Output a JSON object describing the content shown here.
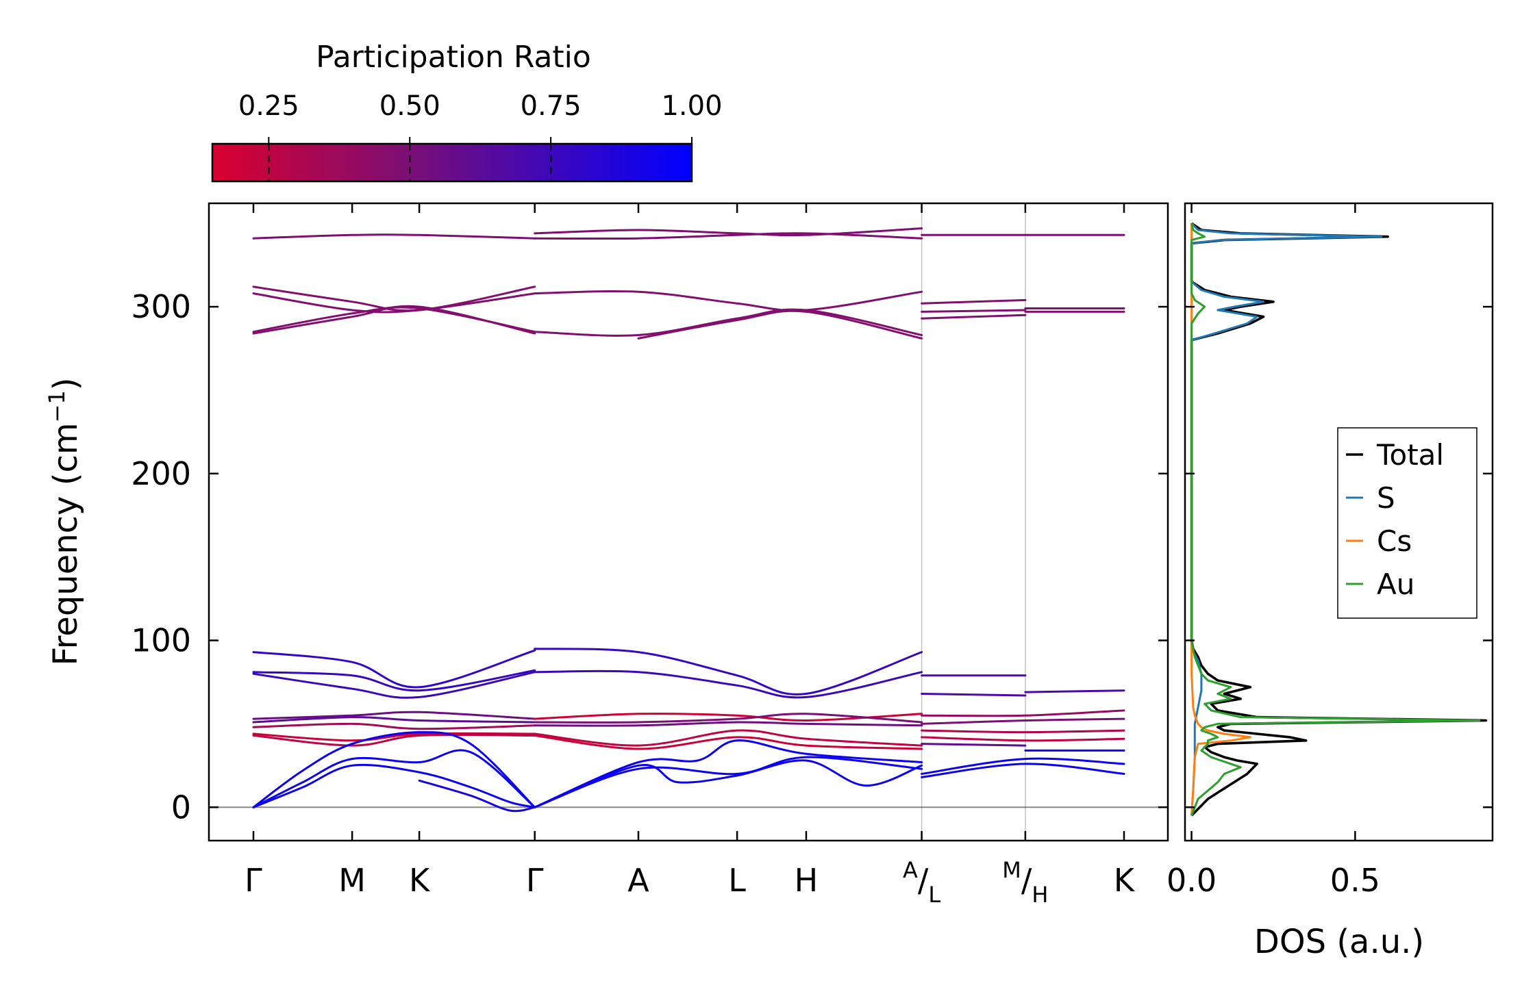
{
  "colorbar": {
    "title": "Participation Ratio",
    "range": [
      0.15,
      1.0
    ],
    "ticks": [
      0.25,
      0.5,
      0.75,
      1.0
    ],
    "tick_labels": [
      "0.25",
      "0.50",
      "0.75",
      "1.00"
    ],
    "color_low": "#d9002e",
    "color_mid": "#7a0f74",
    "color_high": "#0000ff"
  },
  "chart_data": [
    {
      "type": "line",
      "title": "",
      "xlabel": "",
      "ylabel": "Frequency (cm⁻¹)",
      "ylabel_text": "Frequency (cm",
      "ylabel_sup": "−1",
      "ylabel_close": ")",
      "ylim": [
        -20,
        362
      ],
      "yticks": [
        0,
        100,
        200,
        300
      ],
      "ytick_labels": [
        "0",
        "100",
        "200",
        "300"
      ],
      "kpath_labels": [
        "Γ",
        "M",
        "K",
        "Γ",
        "A",
        "L",
        "H",
        "A|L",
        "M|H",
        "K"
      ],
      "kpath_positions": [
        0,
        1.0,
        1.68,
        2.85,
        3.9,
        4.9,
        5.6,
        6.77,
        7.82,
        8.82
      ],
      "kpath_display": [
        {
          "main": "Γ"
        },
        {
          "main": "M"
        },
        {
          "main": "K"
        },
        {
          "main": "Γ"
        },
        {
          "main": "A"
        },
        {
          "main": "L"
        },
        {
          "main": "H"
        },
        {
          "sup": "A",
          "main": "/",
          "sub": "L"
        },
        {
          "sup": "M",
          "main": "/",
          "sub": "H"
        },
        {
          "main": "K"
        }
      ],
      "zero_line_color": "#888888",
      "series": [
        {
          "name": "Sh1",
          "pr": 0.48,
          "x": [
            0,
            1.0,
            1.68,
            2.85
          ],
          "y": [
            341,
            343,
            343,
            341
          ]
        },
        {
          "name": "Sh2",
          "pr": 0.48,
          "x": [
            2.85,
            3.9,
            4.9,
            5.6,
            6.77
          ],
          "y": [
            344,
            346,
            344,
            343,
            347
          ]
        },
        {
          "name": "Sh3",
          "pr": 0.48,
          "x": [
            2.85,
            3.9,
            4.9,
            5.6,
            6.77
          ],
          "y": [
            341,
            341,
            343,
            344,
            341
          ]
        },
        {
          "name": "Sh4",
          "pr": 0.48,
          "x": [
            6.77,
            7.82,
            8.82
          ],
          "y": [
            343,
            343,
            343
          ]
        },
        {
          "name": "Sm1",
          "pr": 0.47,
          "x": [
            0,
            1.0,
            1.68,
            2.85
          ],
          "y": [
            312,
            303,
            298,
            312
          ]
        },
        {
          "name": "Sm2",
          "pr": 0.47,
          "x": [
            0,
            1.0,
            1.68,
            2.85
          ],
          "y": [
            308,
            298,
            298,
            308
          ]
        },
        {
          "name": "Sm3",
          "pr": 0.47,
          "x": [
            0,
            1.0,
            1.68,
            2.85
          ],
          "y": [
            285,
            296,
            299,
            285
          ]
        },
        {
          "name": "Sm4",
          "pr": 0.47,
          "x": [
            0,
            1.0,
            1.68,
            2.85
          ],
          "y": [
            284,
            294,
            300,
            284
          ]
        },
        {
          "name": "Sm5",
          "pr": 0.47,
          "x": [
            2.85,
            3.9,
            4.9,
            5.6,
            6.77
          ],
          "y": [
            308,
            309,
            302,
            298,
            309
          ]
        },
        {
          "name": "Sm6",
          "pr": 0.47,
          "x": [
            2.85,
            3.9,
            4.9,
            5.6,
            6.77
          ],
          "y": [
            285,
            283,
            293,
            298,
            283
          ]
        },
        {
          "name": "Sm7",
          "pr": 0.47,
          "x": [
            3.9,
            4.9,
            5.6,
            6.77
          ],
          "y": [
            281,
            292,
            297,
            281
          ]
        },
        {
          "name": "Sm8",
          "pr": 0.47,
          "x": [
            6.77,
            7.82
          ],
          "y": [
            302,
            304
          ]
        },
        {
          "name": "Sm9",
          "pr": 0.47,
          "x": [
            6.77,
            7.82
          ],
          "y": [
            297,
            298
          ]
        },
        {
          "name": "Sm10",
          "pr": 0.47,
          "x": [
            6.77,
            7.82
          ],
          "y": [
            293,
            295
          ]
        },
        {
          "name": "Sm11",
          "pr": 0.47,
          "x": [
            7.82,
            8.82
          ],
          "y": [
            299,
            299
          ]
        },
        {
          "name": "Sm12",
          "pr": 0.47,
          "x": [
            7.82,
            8.82
          ],
          "y": [
            297,
            297
          ]
        },
        {
          "name": "O1",
          "pr": 0.8,
          "x": [
            0,
            1.0,
            1.68,
            2.85
          ],
          "y": [
            93,
            87,
            72,
            94
          ]
        },
        {
          "name": "O2",
          "pr": 0.78,
          "x": [
            0,
            1.0,
            1.68,
            2.85
          ],
          "y": [
            81,
            79,
            70,
            82
          ]
        },
        {
          "name": "O3",
          "pr": 0.76,
          "x": [
            0,
            1.0,
            1.68,
            2.85
          ],
          "y": [
            80,
            71,
            66,
            81
          ]
        },
        {
          "name": "O4",
          "pr": 0.78,
          "x": [
            2.85,
            3.9,
            4.9,
            5.6,
            6.77
          ],
          "y": [
            95,
            93,
            79,
            68,
            93
          ]
        },
        {
          "name": "O5",
          "pr": 0.76,
          "x": [
            2.85,
            3.9,
            4.9,
            5.6,
            6.77
          ],
          "y": [
            81,
            81,
            73,
            66,
            81
          ]
        },
        {
          "name": "O6",
          "pr": 0.7,
          "x": [
            6.77,
            7.82
          ],
          "y": [
            79,
            79
          ]
        },
        {
          "name": "O7",
          "pr": 0.7,
          "x": [
            6.77,
            7.82
          ],
          "y": [
            68,
            67
          ]
        },
        {
          "name": "O8",
          "pr": 0.7,
          "x": [
            7.82,
            8.82
          ],
          "y": [
            69,
            70
          ]
        },
        {
          "name": "L1",
          "pr": 0.55,
          "x": [
            0,
            1.0,
            1.68,
            2.85
          ],
          "y": [
            53,
            55,
            57,
            53
          ]
        },
        {
          "name": "L2",
          "pr": 0.62,
          "x": [
            0,
            1.0,
            1.68,
            2.85
          ],
          "y": [
            51,
            54,
            52,
            51
          ]
        },
        {
          "name": "L3",
          "pr": 0.35,
          "x": [
            0,
            1.0,
            1.68,
            2.85
          ],
          "y": [
            48,
            50,
            47,
            49
          ]
        },
        {
          "name": "L4",
          "pr": 0.22,
          "x": [
            0,
            1.0,
            1.68,
            2.85
          ],
          "y": [
            44,
            40,
            44,
            44
          ]
        },
        {
          "name": "L5",
          "pr": 0.25,
          "x": [
            0,
            1.0,
            1.68,
            2.85
          ],
          "y": [
            43,
            37,
            43,
            43
          ]
        },
        {
          "name": "L6",
          "pr": 0.2,
          "x": [
            2.85,
            3.9,
            4.9,
            5.6,
            6.77
          ],
          "y": [
            53,
            56,
            55,
            52,
            56
          ]
        },
        {
          "name": "L7",
          "pr": 0.5,
          "x": [
            2.85,
            3.9,
            4.9,
            5.6,
            6.77
          ],
          "y": [
            51,
            51,
            53,
            56,
            51
          ]
        },
        {
          "name": "L8",
          "pr": 0.55,
          "x": [
            2.85,
            3.9,
            4.9,
            5.6,
            6.77
          ],
          "y": [
            49,
            49,
            51,
            50,
            49
          ]
        },
        {
          "name": "L9",
          "pr": 0.25,
          "x": [
            2.85,
            3.9,
            4.9,
            5.6,
            6.77
          ],
          "y": [
            44,
            37,
            46,
            41,
            37
          ]
        },
        {
          "name": "L10",
          "pr": 0.2,
          "x": [
            2.85,
            3.9,
            4.9,
            5.6,
            6.77
          ],
          "y": [
            43,
            35,
            42,
            37,
            35
          ]
        },
        {
          "name": "L11",
          "pr": 0.4,
          "x": [
            6.77,
            7.82,
            8.82
          ],
          "y": [
            55,
            55,
            58
          ]
        },
        {
          "name": "L12",
          "pr": 0.5,
          "x": [
            6.77,
            7.82,
            8.82
          ],
          "y": [
            50,
            52,
            53
          ]
        },
        {
          "name": "L13",
          "pr": 0.3,
          "x": [
            6.77,
            7.82,
            8.82
          ],
          "y": [
            46,
            45,
            46
          ]
        },
        {
          "name": "L14",
          "pr": 0.25,
          "x": [
            6.77,
            7.82,
            8.82
          ],
          "y": [
            42,
            40,
            41
          ]
        },
        {
          "name": "L15",
          "pr": 0.6,
          "x": [
            6.77,
            7.82
          ],
          "y": [
            38,
            37
          ]
        },
        {
          "name": "A1",
          "pr": 0.95,
          "x": [
            0,
            0.5,
            1.0,
            1.68,
            2.2,
            2.85
          ],
          "y": [
            0,
            22,
            38,
            45,
            38,
            0
          ]
        },
        {
          "name": "A2",
          "pr": 0.95,
          "x": [
            0,
            0.5,
            1.0,
            1.68,
            2.2,
            2.85
          ],
          "y": [
            0,
            15,
            29,
            27,
            33,
            0
          ]
        },
        {
          "name": "A3",
          "pr": 0.95,
          "x": [
            0,
            0.5,
            1.0,
            1.68,
            2.2,
            2.6,
            2.85
          ],
          "y": [
            0,
            12,
            25,
            21,
            12,
            3,
            0
          ]
        },
        {
          "name": "A4",
          "pr": 0.9,
          "x": [
            1.68,
            2.2,
            2.6,
            2.85
          ],
          "y": [
            16,
            7,
            -2,
            0
          ]
        },
        {
          "name": "A5",
          "pr": 0.95,
          "x": [
            2.85,
            3.9,
            4.5,
            4.9,
            5.6,
            6.77
          ],
          "y": [
            0,
            27,
            28,
            40,
            32,
            27
          ]
        },
        {
          "name": "A6",
          "pr": 0.95,
          "x": [
            2.85,
            3.9,
            4.3,
            4.9,
            5.6,
            6.2,
            6.77
          ],
          "y": [
            0,
            25,
            15,
            19,
            28,
            13,
            25
          ]
        },
        {
          "name": "A7",
          "pr": 0.95,
          "x": [
            2.85,
            3.9,
            4.9,
            5.6,
            6.77
          ],
          "y": [
            0,
            23,
            20,
            30,
            23
          ]
        },
        {
          "name": "A8",
          "pr": 0.95,
          "x": [
            6.77,
            7.82,
            8.82
          ],
          "y": [
            20,
            29,
            26
          ]
        },
        {
          "name": "A9",
          "pr": 0.95,
          "x": [
            6.77,
            7.82,
            8.82
          ],
          "y": [
            18,
            26,
            20
          ]
        },
        {
          "name": "A10",
          "pr": 0.95,
          "x": [
            7.82,
            8.82
          ],
          "y": [
            34,
            34
          ]
        }
      ]
    },
    {
      "type": "line",
      "title": "",
      "xlabel": "DOS (a.u.)",
      "ylabel": "",
      "xlim": [
        -0.02,
        0.92
      ],
      "ylim": [
        -20,
        362
      ],
      "xticks": [
        0.0,
        0.5
      ],
      "xtick_labels": [
        "0.0",
        "0.5"
      ],
      "legend_position": "center-right",
      "series": [
        {
          "name": "Total",
          "color": "#000000",
          "width": 3.6,
          "y": [
            -5,
            5,
            20,
            24,
            26,
            28,
            30,
            33,
            36,
            38,
            40,
            42,
            44,
            46,
            48,
            50,
            52,
            54,
            58,
            62,
            65,
            68,
            72,
            76,
            80,
            85,
            90,
            95,
            100,
            280,
            284,
            290,
            294,
            298,
            300,
            303,
            306,
            310,
            315,
            338,
            340,
            342,
            344,
            346,
            350
          ],
          "x": [
            0.0,
            0.05,
            0.17,
            0.19,
            0.2,
            0.14,
            0.1,
            0.06,
            0.04,
            0.08,
            0.35,
            0.3,
            0.2,
            0.1,
            0.08,
            0.12,
            0.9,
            0.2,
            0.08,
            0.06,
            0.15,
            0.1,
            0.18,
            0.08,
            0.05,
            0.03,
            0.02,
            0.005,
            0.0,
            0.0,
            0.08,
            0.18,
            0.22,
            0.1,
            0.15,
            0.25,
            0.12,
            0.04,
            0.0,
            0.0,
            0.1,
            0.6,
            0.15,
            0.03,
            0.0
          ]
        },
        {
          "name": "S",
          "color": "#1f77b4",
          "width": 3.0,
          "y": [
            -5,
            10,
            30,
            50,
            60,
            70,
            80,
            88,
            95,
            100,
            280,
            284,
            290,
            294,
            298,
            300,
            303,
            306,
            310,
            315,
            338,
            340,
            342,
            344,
            346,
            350
          ],
          "x": [
            0.0,
            0.005,
            0.01,
            0.01,
            0.02,
            0.03,
            0.03,
            0.02,
            0.0,
            0.0,
            0.0,
            0.07,
            0.17,
            0.2,
            0.08,
            0.13,
            0.22,
            0.1,
            0.03,
            0.0,
            0.0,
            0.09,
            0.58,
            0.12,
            0.02,
            0.0
          ]
        },
        {
          "name": "Cs",
          "color": "#ff7f0e",
          "width": 3.0,
          "y": [
            -5,
            10,
            30,
            38,
            40,
            42,
            44,
            46,
            48,
            50,
            55,
            60,
            80,
            100,
            300,
            345,
            350
          ],
          "x": [
            0.0,
            0.005,
            0.01,
            0.02,
            0.12,
            0.18,
            0.1,
            0.05,
            0.03,
            0.02,
            0.01,
            0.005,
            0.0,
            0.0,
            0.0,
            0.0,
            0.0
          ]
        },
        {
          "name": "Au",
          "color": "#2ca02c",
          "width": 3.0,
          "y": [
            -5,
            5,
            15,
            20,
            24,
            26,
            30,
            34,
            38,
            40,
            42,
            44,
            46,
            48,
            50,
            52,
            54,
            58,
            62,
            65,
            68,
            72,
            76,
            80,
            85,
            90,
            95,
            100,
            290,
            296,
            300,
            304,
            308,
            340,
            342,
            344,
            346,
            350
          ],
          "x": [
            0.0,
            0.02,
            0.08,
            0.1,
            0.15,
            0.12,
            0.06,
            0.03,
            0.05,
            0.05,
            0.08,
            0.06,
            0.03,
            0.04,
            0.08,
            0.88,
            0.15,
            0.06,
            0.04,
            0.12,
            0.08,
            0.12,
            0.05,
            0.03,
            0.02,
            0.01,
            0.005,
            0.0,
            0.0,
            0.02,
            0.04,
            0.01,
            0.0,
            0.0,
            0.04,
            0.02,
            0.005,
            0.0
          ]
        }
      ]
    }
  ]
}
